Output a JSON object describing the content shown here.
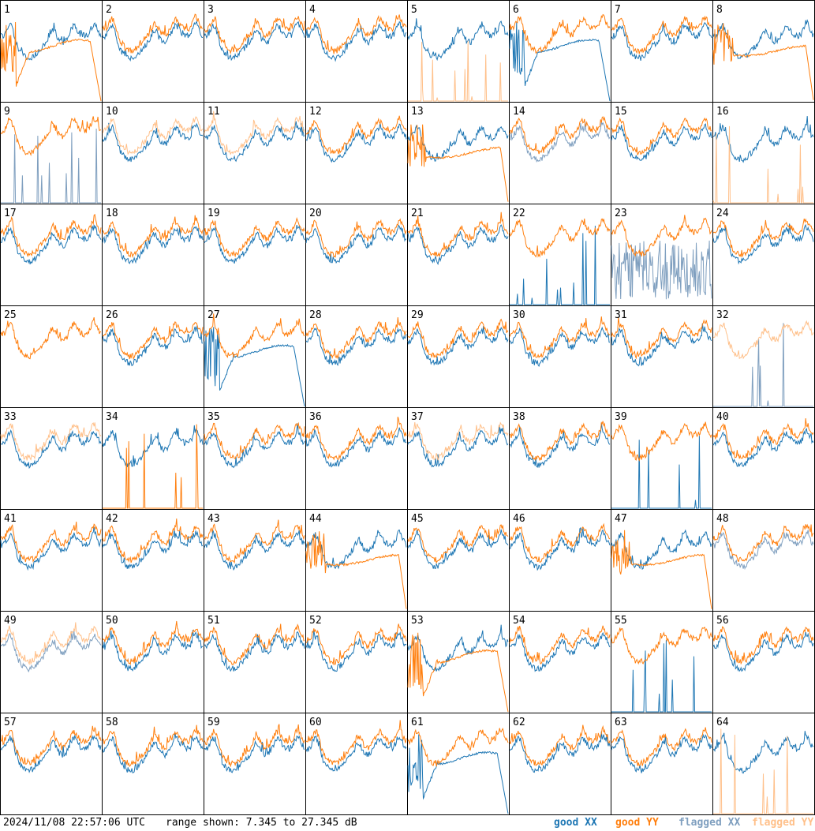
{
  "footer": {
    "timestamp": "2024/11/08 22:57:06 UTC",
    "range_text": "range shown: 7.345 to 27.345 dB"
  },
  "legend": [
    {
      "label": "good XX",
      "color": "#1f77b4"
    },
    {
      "label": "good YY",
      "color": "#ff7f0e"
    },
    {
      "label": "flagged XX",
      "color": "#7f9fbf"
    },
    {
      "label": "flagged YY",
      "color": "#ffc08a"
    }
  ],
  "chart_data": {
    "type": "line",
    "title": "",
    "ylim": [
      7.345,
      27.345
    ],
    "grid": false,
    "legend_placement": "bottom-right",
    "panels": [
      {
        "label": "1",
        "xx": "good",
        "yy": "good",
        "xx_shape": "normal",
        "yy_shape": "dip"
      },
      {
        "label": "2",
        "xx": "good",
        "yy": "good",
        "xx_shape": "normal",
        "yy_shape": "normal"
      },
      {
        "label": "3",
        "xx": "good",
        "yy": "good",
        "xx_shape": "normal",
        "yy_shape": "normal"
      },
      {
        "label": "4",
        "xx": "good",
        "yy": "good",
        "xx_shape": "normal",
        "yy_shape": "normal"
      },
      {
        "label": "5",
        "xx": "good",
        "yy": "flagged",
        "xx_shape": "normal",
        "yy_shape": "spikes"
      },
      {
        "label": "6",
        "xx": "good",
        "yy": "good",
        "xx_shape": "dip",
        "yy_shape": "normal"
      },
      {
        "label": "7",
        "xx": "good",
        "yy": "good",
        "xx_shape": "normal",
        "yy_shape": "normal"
      },
      {
        "label": "8",
        "xx": "good",
        "yy": "good",
        "xx_shape": "normal",
        "yy_shape": "plateau"
      },
      {
        "label": "9",
        "xx": "flagged",
        "yy": "good",
        "xx_shape": "spikes",
        "yy_shape": "normal"
      },
      {
        "label": "10",
        "xx": "good",
        "yy": "flagged",
        "xx_shape": "normal",
        "yy_shape": "normal"
      },
      {
        "label": "11",
        "xx": "good",
        "yy": "flagged",
        "xx_shape": "normal",
        "yy_shape": "normal"
      },
      {
        "label": "12",
        "xx": "good",
        "yy": "good",
        "xx_shape": "normal",
        "yy_shape": "normal"
      },
      {
        "label": "13",
        "xx": "good",
        "yy": "good",
        "xx_shape": "normal",
        "yy_shape": "plateau"
      },
      {
        "label": "14",
        "xx": "flagged",
        "yy": "good",
        "xx_shape": "normal",
        "yy_shape": "normal"
      },
      {
        "label": "15",
        "xx": "good",
        "yy": "good",
        "xx_shape": "normal",
        "yy_shape": "normal"
      },
      {
        "label": "16",
        "xx": "good",
        "yy": "flagged",
        "xx_shape": "normal",
        "yy_shape": "spikes"
      },
      {
        "label": "17",
        "xx": "good",
        "yy": "good",
        "xx_shape": "normal",
        "yy_shape": "normal"
      },
      {
        "label": "18",
        "xx": "good",
        "yy": "good",
        "xx_shape": "normal",
        "yy_shape": "normal"
      },
      {
        "label": "19",
        "xx": "good",
        "yy": "good",
        "xx_shape": "normal",
        "yy_shape": "normal"
      },
      {
        "label": "20",
        "xx": "good",
        "yy": "good",
        "xx_shape": "normal",
        "yy_shape": "normal"
      },
      {
        "label": "21",
        "xx": "good",
        "yy": "good",
        "xx_shape": "normal",
        "yy_shape": "normal"
      },
      {
        "label": "22",
        "xx": "good",
        "yy": "good",
        "xx_shape": "spikes",
        "yy_shape": "normal"
      },
      {
        "label": "23",
        "xx": "flagged",
        "yy": "good",
        "xx_shape": "noisy",
        "yy_shape": "normal"
      },
      {
        "label": "24",
        "xx": "good",
        "yy": "good",
        "xx_shape": "normal",
        "yy_shape": "normal"
      },
      {
        "label": "25",
        "xx": "good",
        "yy": "good",
        "xx_shape": "none",
        "yy_shape": "normal"
      },
      {
        "label": "26",
        "xx": "good",
        "yy": "good",
        "xx_shape": "normal",
        "yy_shape": "normal"
      },
      {
        "label": "27",
        "xx": "good",
        "yy": "good",
        "xx_shape": "dip",
        "yy_shape": "normal"
      },
      {
        "label": "28",
        "xx": "good",
        "yy": "good",
        "xx_shape": "normal",
        "yy_shape": "normal"
      },
      {
        "label": "29",
        "xx": "good",
        "yy": "good",
        "xx_shape": "normal",
        "yy_shape": "normal"
      },
      {
        "label": "30",
        "xx": "good",
        "yy": "good",
        "xx_shape": "normal",
        "yy_shape": "normal"
      },
      {
        "label": "31",
        "xx": "good",
        "yy": "good",
        "xx_shape": "normal",
        "yy_shape": "normal"
      },
      {
        "label": "32",
        "xx": "flagged",
        "yy": "flagged",
        "xx_shape": "spikes",
        "yy_shape": "normal"
      },
      {
        "label": "33",
        "xx": "good",
        "yy": "flagged",
        "xx_shape": "normal",
        "yy_shape": "normal"
      },
      {
        "label": "34",
        "xx": "good",
        "yy": "good",
        "xx_shape": "normal",
        "yy_shape": "spikes"
      },
      {
        "label": "35",
        "xx": "good",
        "yy": "good",
        "xx_shape": "normal",
        "yy_shape": "normal"
      },
      {
        "label": "36",
        "xx": "good",
        "yy": "good",
        "xx_shape": "normal",
        "yy_shape": "normal"
      },
      {
        "label": "37",
        "xx": "good",
        "yy": "flagged",
        "xx_shape": "normal",
        "yy_shape": "normal"
      },
      {
        "label": "38",
        "xx": "good",
        "yy": "good",
        "xx_shape": "normal",
        "yy_shape": "normal"
      },
      {
        "label": "39",
        "xx": "good",
        "yy": "good",
        "xx_shape": "spikes",
        "yy_shape": "normal"
      },
      {
        "label": "40",
        "xx": "good",
        "yy": "good",
        "xx_shape": "normal",
        "yy_shape": "normal"
      },
      {
        "label": "41",
        "xx": "good",
        "yy": "good",
        "xx_shape": "normal",
        "yy_shape": "normal"
      },
      {
        "label": "42",
        "xx": "good",
        "yy": "good",
        "xx_shape": "normal",
        "yy_shape": "normal"
      },
      {
        "label": "43",
        "xx": "good",
        "yy": "good",
        "xx_shape": "normal",
        "yy_shape": "normal"
      },
      {
        "label": "44",
        "xx": "good",
        "yy": "good",
        "xx_shape": "normal",
        "yy_shape": "plateau"
      },
      {
        "label": "45",
        "xx": "good",
        "yy": "good",
        "xx_shape": "normal",
        "yy_shape": "normal"
      },
      {
        "label": "46",
        "xx": "good",
        "yy": "good",
        "xx_shape": "normal",
        "yy_shape": "normal"
      },
      {
        "label": "47",
        "xx": "good",
        "yy": "good",
        "xx_shape": "normal",
        "yy_shape": "plateau"
      },
      {
        "label": "48",
        "xx": "flagged",
        "yy": "good",
        "xx_shape": "normal",
        "yy_shape": "normal"
      },
      {
        "label": "49",
        "xx": "flagged",
        "yy": "flagged",
        "xx_shape": "normal",
        "yy_shape": "normal"
      },
      {
        "label": "50",
        "xx": "good",
        "yy": "good",
        "xx_shape": "normal",
        "yy_shape": "normal"
      },
      {
        "label": "51",
        "xx": "good",
        "yy": "good",
        "xx_shape": "normal",
        "yy_shape": "normal"
      },
      {
        "label": "52",
        "xx": "good",
        "yy": "good",
        "xx_shape": "normal",
        "yy_shape": "normal"
      },
      {
        "label": "53",
        "xx": "good",
        "yy": "good",
        "xx_shape": "normal",
        "yy_shape": "dip"
      },
      {
        "label": "54",
        "xx": "good",
        "yy": "good",
        "xx_shape": "normal",
        "yy_shape": "normal"
      },
      {
        "label": "55",
        "xx": "good",
        "yy": "good",
        "xx_shape": "spikes",
        "yy_shape": "normal"
      },
      {
        "label": "56",
        "xx": "good",
        "yy": "good",
        "xx_shape": "normal",
        "yy_shape": "normal"
      },
      {
        "label": "57",
        "xx": "good",
        "yy": "good",
        "xx_shape": "normal",
        "yy_shape": "normal"
      },
      {
        "label": "58",
        "xx": "good",
        "yy": "good",
        "xx_shape": "normal",
        "yy_shape": "normal"
      },
      {
        "label": "59",
        "xx": "good",
        "yy": "good",
        "xx_shape": "normal",
        "yy_shape": "normal"
      },
      {
        "label": "60",
        "xx": "good",
        "yy": "good",
        "xx_shape": "normal",
        "yy_shape": "normal"
      },
      {
        "label": "61",
        "xx": "good",
        "yy": "good",
        "xx_shape": "dip",
        "yy_shape": "normal"
      },
      {
        "label": "62",
        "xx": "good",
        "yy": "good",
        "xx_shape": "normal",
        "yy_shape": "normal"
      },
      {
        "label": "63",
        "xx": "good",
        "yy": "good",
        "xx_shape": "normal",
        "yy_shape": "normal"
      },
      {
        "label": "64",
        "xx": "good",
        "yy": "flagged",
        "xx_shape": "normal",
        "yy_shape": "spikes"
      }
    ]
  }
}
